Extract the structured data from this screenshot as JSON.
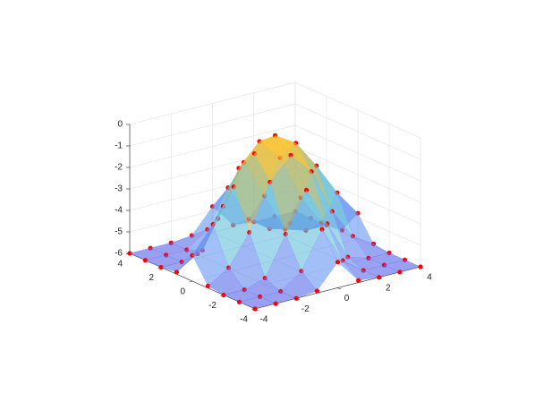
{
  "chart_data": {
    "type": "surface",
    "x": [
      -4,
      -3,
      -2,
      -1,
      0,
      1,
      2,
      3,
      4
    ],
    "y": [
      -4,
      -3,
      -2,
      -1,
      0,
      1,
      2,
      3,
      4
    ],
    "z": [
      [
        -6,
        -6,
        -6,
        -5.9,
        -4.8,
        -5.9,
        -6,
        -6,
        -6
      ],
      [
        -6,
        -6,
        -6,
        -5.3,
        -3.6,
        -5.3,
        -6,
        -6,
        -6
      ],
      [
        -6,
        -6,
        -5.7,
        -3.9,
        -2.1,
        -3.9,
        -5.7,
        -6,
        -6
      ],
      [
        -5.9,
        -5.3,
        -3.9,
        -1.8,
        -0.8,
        -1.8,
        -3.9,
        -5.3,
        -5.9
      ],
      [
        -4.8,
        -3.6,
        -2.1,
        -0.8,
        -0.2,
        -0.8,
        -2.1,
        -3.6,
        -4.8
      ],
      [
        -5.9,
        -5.3,
        -3.9,
        -1.8,
        -0.8,
        -1.8,
        -3.9,
        -5.3,
        -5.9
      ],
      [
        -6,
        -6,
        -5.7,
        -3.9,
        -2.1,
        -3.9,
        -5.7,
        -6,
        -6
      ],
      [
        -6,
        -6,
        -6,
        -5.3,
        -3.6,
        -5.3,
        -6,
        -6,
        -6
      ],
      [
        -6,
        -6,
        -6,
        -5.9,
        -4.8,
        -5.9,
        -6,
        -6,
        -6
      ]
    ],
    "xlim": [
      -4,
      4
    ],
    "ylim": [
      -4,
      4
    ],
    "zlim": [
      -6,
      0
    ],
    "xticks": [
      -4,
      -2,
      0,
      2,
      4
    ],
    "yticks": [
      -4,
      -2,
      0,
      2,
      4
    ],
    "zticks": [
      -6,
      -5,
      -4,
      -3,
      -2,
      -1,
      0
    ],
    "grid": true,
    "colormap": [
      "#5560e8",
      "#6aa8f4",
      "#5fd6c0",
      "#f0a030",
      "#ffe000"
    ],
    "face_alpha": 0.6,
    "marker_color": "#ff0000"
  }
}
